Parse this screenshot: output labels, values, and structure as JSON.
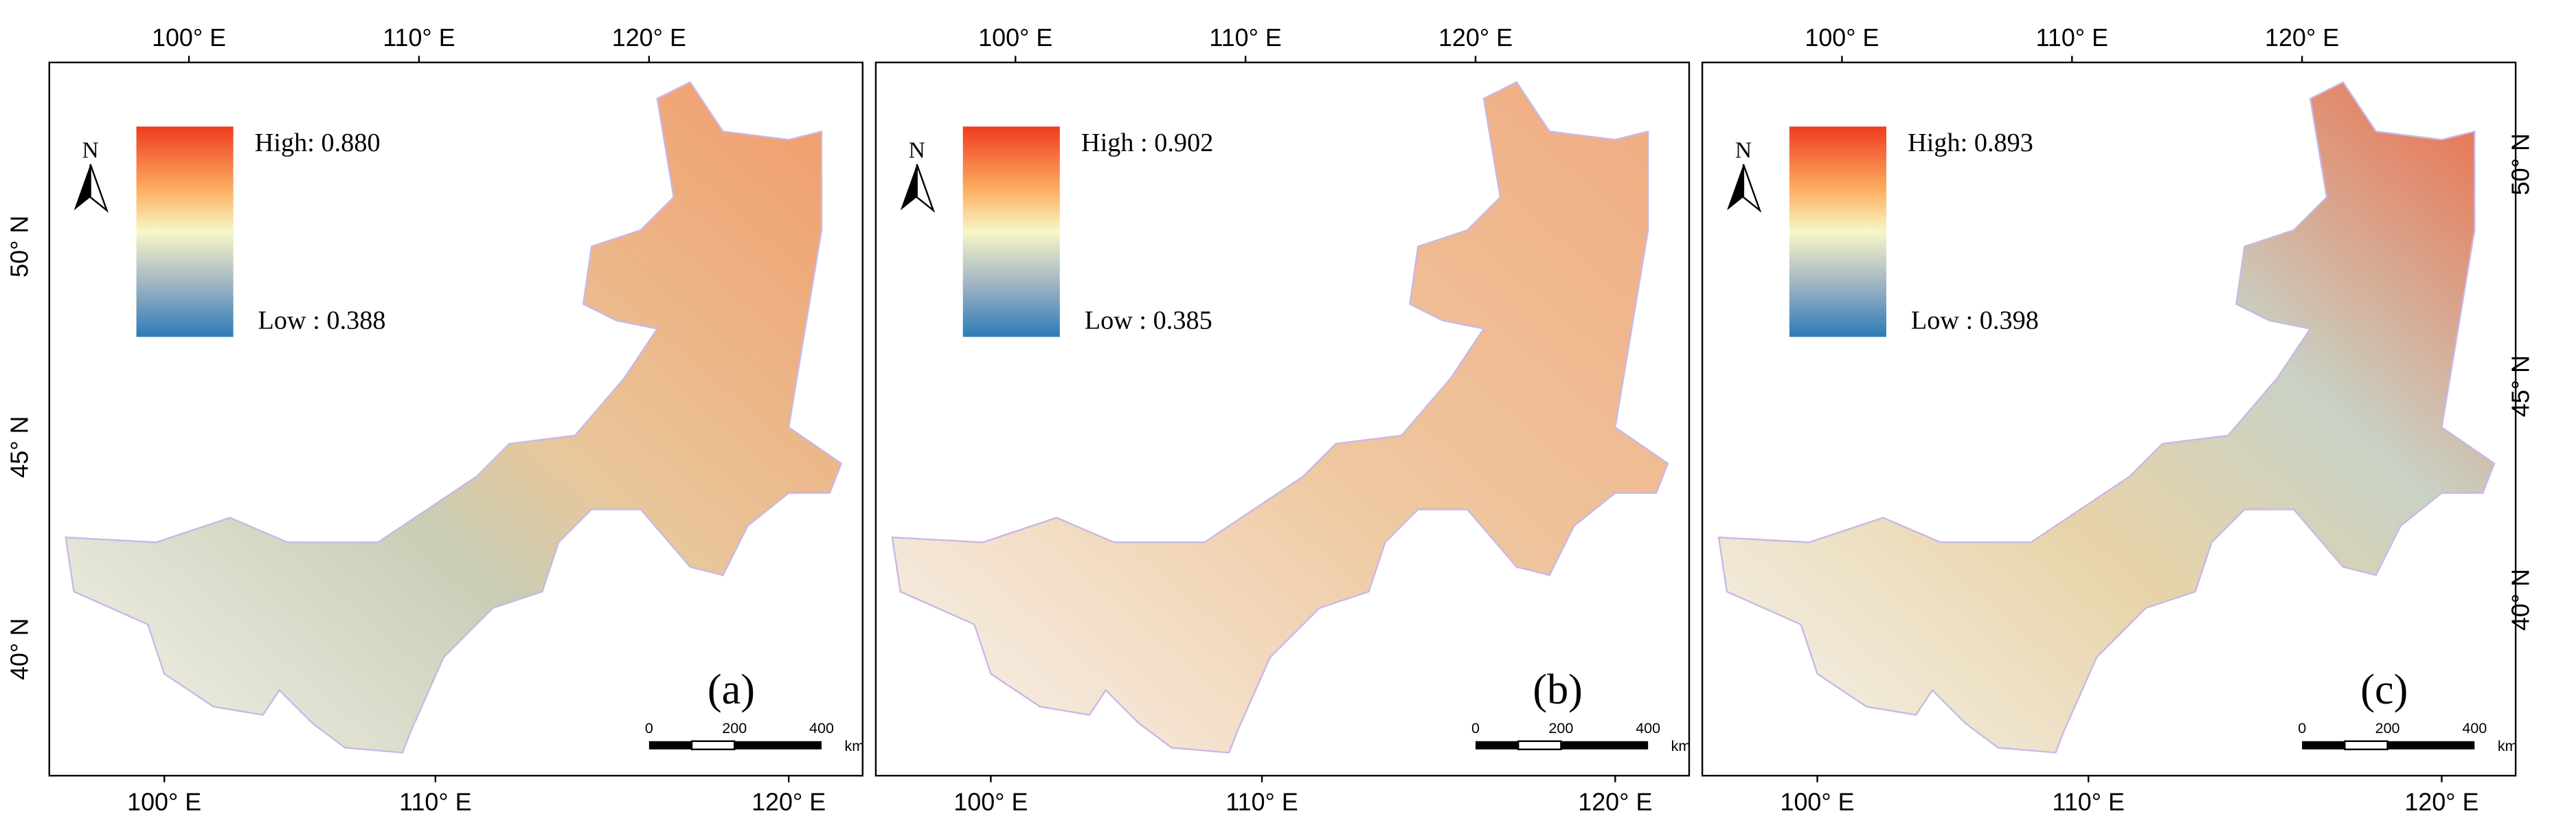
{
  "panels": [
    {
      "label": "(a)",
      "legend": {
        "high": "High: 0.880",
        "low": "Low : 0.388"
      },
      "north": "N",
      "top_ticks": [
        "100° E",
        "110° E",
        "120° E"
      ],
      "bottom_ticks": [
        "100° E",
        "110° E",
        "120° E"
      ],
      "left_ticks": [
        "50° N",
        "45° N",
        "40° N"
      ],
      "scale_bar": [
        "0",
        "200",
        "400",
        "km"
      ]
    },
    {
      "label": "(b)",
      "legend": {
        "high": "High : 0.902",
        "low": "Low : 0.385"
      },
      "north": "N",
      "top_ticks": [
        "100° E",
        "110° E",
        "120° E"
      ],
      "bottom_ticks": [
        "100° E",
        "110° E",
        "120° E"
      ],
      "scale_bar": [
        "0",
        "200",
        "400",
        "km"
      ]
    },
    {
      "label": "(c)",
      "legend": {
        "high": "High: 0.893",
        "low": "Low : 0.398"
      },
      "north": "N",
      "top_ticks": [
        "100° E",
        "110° E",
        "120° E"
      ],
      "bottom_ticks": [
        "100° E",
        "110° E",
        "120° E"
      ],
      "right_ticks": [
        "50° N",
        "45° N",
        "40° N"
      ],
      "scale_bar": [
        "0",
        "200",
        "400",
        "km"
      ]
    }
  ]
}
